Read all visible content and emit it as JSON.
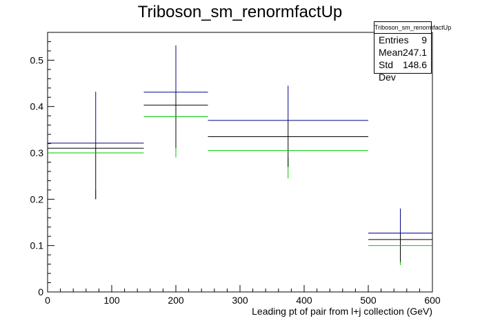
{
  "chart_data": {
    "type": "errorbar-histogram",
    "title": "Triboson_sm_renormfactUp",
    "xlabel": "Leading pt of pair from l+j collection (GeV)",
    "ylabel": "",
    "xlim": [
      0,
      600
    ],
    "ylim": [
      0,
      0.56
    ],
    "x_ticks": [
      0,
      100,
      200,
      300,
      400,
      500,
      600
    ],
    "y_ticks": [
      0,
      0.1,
      0.2,
      0.3,
      0.4,
      0.5
    ],
    "bins": [
      [
        0,
        150
      ],
      [
        150,
        250
      ],
      [
        250,
        500
      ],
      [
        500,
        600
      ]
    ],
    "error_low": [
      0.2,
      0.31,
      0.27,
      0.065
    ],
    "error_high": [
      0.432,
      0.532,
      0.445,
      0.18
    ],
    "series": [
      {
        "color": "#00008b",
        "values": [
          0.321,
          0.431,
          0.37,
          0.127
        ]
      },
      {
        "color": "#000000",
        "values": [
          0.31,
          0.403,
          0.335,
          0.113
        ]
      },
      {
        "color": "#00c800",
        "values": [
          0.3,
          0.378,
          0.305,
          0.1
        ]
      }
    ],
    "green_error_low": [
      0.2,
      0.29,
      0.245,
      0.058
    ],
    "stats": {
      "name": "Triboson_sm_renormfactUp",
      "entries_label": "Entries",
      "entries": "9",
      "mean_label": "Mean",
      "mean": "247.1",
      "std_label": "Std Dev",
      "std": "148.6"
    }
  }
}
